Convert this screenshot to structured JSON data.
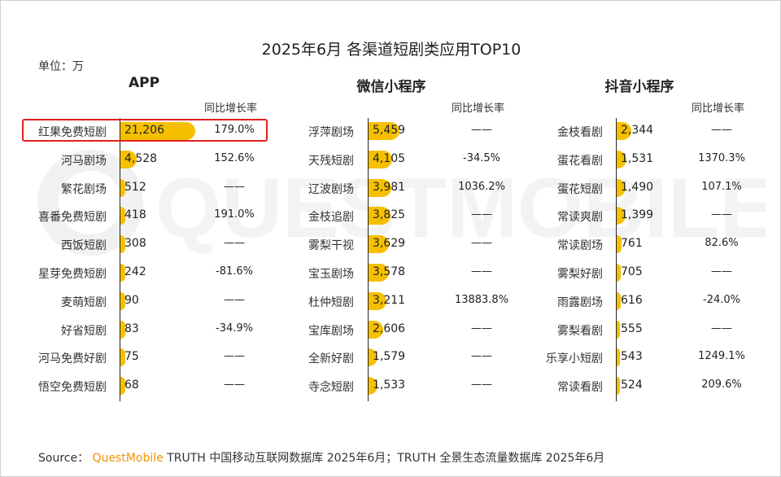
{
  "title": "2025年6月 各渠道短剧类应用TOP10",
  "unit_label": "单位：万",
  "growth_header": "同比增长率",
  "watermark_text": "QUESTMOBILE",
  "source": {
    "prefix": "Source：",
    "brand": "QuestMobile",
    "rest": "TRUTH 中国移动互联网数据库 2025年6月；TRUTH 全景生态流量数据库 2025年6月"
  },
  "colors": {
    "bar": "#f6c000",
    "highlight": "#e02020",
    "brand": "#f29200"
  },
  "chart_data": [
    {
      "type": "bar",
      "title": "APP",
      "unit": "万",
      "categories": [
        "红果免费短剧",
        "河马剧场",
        "繁花剧场",
        "喜番免费短剧",
        "西饭短剧",
        "星芽免费短剧",
        "麦萌短剧",
        "好省短剧",
        "河马免费好剧",
        "悟空免费短剧"
      ],
      "values": [
        21206,
        4528,
        512,
        418,
        308,
        242,
        90,
        83,
        75,
        68
      ],
      "value_labels": [
        "21,206",
        "4,528",
        "512",
        "418",
        "308",
        "242",
        "90",
        "83",
        "75",
        "68"
      ],
      "growth": [
        "179.0%",
        "152.6%",
        "——",
        "191.0%",
        "——",
        "-81.6%",
        "——",
        "-34.9%",
        "——",
        "——"
      ],
      "highlighted": "红果免费短剧"
    },
    {
      "type": "bar",
      "title": "微信小程序",
      "unit": "万",
      "categories": [
        "浮萍剧场",
        "天残短剧",
        "辽波剧场",
        "金枝追剧",
        "雾梨干视",
        "宝玉剧场",
        "杜仲短剧",
        "宝库剧场",
        "全新好剧",
        "寺念短剧"
      ],
      "values": [
        5459,
        4105,
        3981,
        3825,
        3629,
        3578,
        3211,
        2606,
        1579,
        1533
      ],
      "value_labels": [
        "5,459",
        "4,105",
        "3,981",
        "3,825",
        "3,629",
        "3,578",
        "3,211",
        "2,606",
        "1,579",
        "1,533"
      ],
      "growth": [
        "——",
        "-34.5%",
        "1036.2%",
        "——",
        "——",
        "——",
        "13883.8%",
        "——",
        "——",
        "——"
      ]
    },
    {
      "type": "bar",
      "title": "抖音小程序",
      "unit": "万",
      "categories": [
        "金枝看剧",
        "蛋花看剧",
        "蛋花短剧",
        "常读爽剧",
        "常读剧场",
        "雾梨好剧",
        "雨露剧场",
        "雾梨看剧",
        "乐享小短剧",
        "常读看剧"
      ],
      "values": [
        2344,
        1531,
        1490,
        1399,
        761,
        705,
        616,
        555,
        543,
        524
      ],
      "value_labels": [
        "2,344",
        "1,531",
        "1,490",
        "1,399",
        "761",
        "705",
        "616",
        "555",
        "543",
        "524"
      ],
      "growth": [
        "——",
        "1370.3%",
        "107.1%",
        "——",
        "82.6%",
        "——",
        "-24.0%",
        "——",
        "1249.1%",
        "209.6%"
      ]
    }
  ]
}
